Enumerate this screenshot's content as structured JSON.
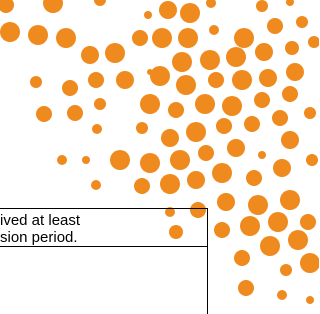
{
  "text_box": {
    "lines": [
      "ived at least",
      "sion period."
    ]
  }
}
